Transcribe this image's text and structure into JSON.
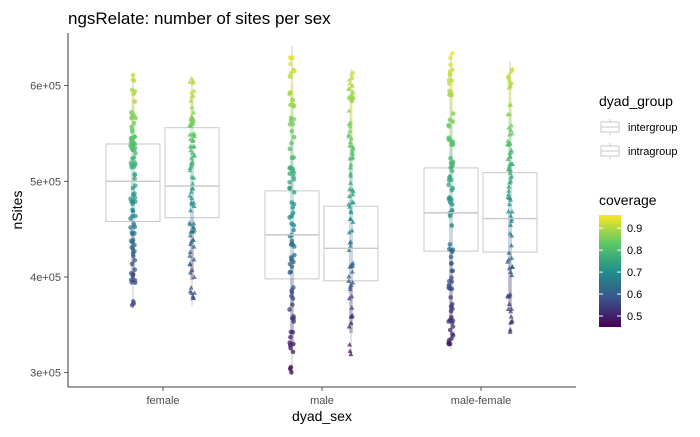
{
  "chart_data": {
    "type": "box",
    "title": "ngsRelate: number of sites per sex",
    "xlabel": "dyad_sex",
    "ylabel": "nSites",
    "categories": [
      "female",
      "male",
      "male-female"
    ],
    "ylim": [
      285000,
      655000
    ],
    "yticks": [
      {
        "value": 300000,
        "label": "3e+05"
      },
      {
        "value": 400000,
        "label": "4e+05"
      },
      {
        "value": 500000,
        "label": "5e+05"
      },
      {
        "value": 600000,
        "label": "6e+05"
      }
    ],
    "grid": false,
    "legend_position": "right",
    "group_legend": {
      "title": "dyad_group",
      "entries": [
        "intergroup",
        "intragroup"
      ],
      "markers": [
        "circle",
        "triangle"
      ]
    },
    "color_legend": {
      "title": "coverage",
      "range": [
        0.45,
        0.96
      ],
      "ticks": [
        {
          "value": 0.5,
          "label": "0.5"
        },
        {
          "value": 0.6,
          "label": "0.6"
        },
        {
          "value": 0.7,
          "label": "0.7"
        },
        {
          "value": 0.8,
          "label": "0.8"
        },
        {
          "value": 0.9,
          "label": "0.9"
        }
      ],
      "colors": [
        "#440154",
        "#3b528b",
        "#21908c",
        "#5dc863",
        "#fde725"
      ]
    },
    "boxes": [
      {
        "category": "female",
        "group": "intergroup",
        "q1": 458000,
        "median": 500000,
        "q3": 539000,
        "min": 367000,
        "max": 612000
      },
      {
        "category": "female",
        "group": "intragroup",
        "q1": 462000,
        "median": 495000,
        "q3": 556000,
        "min": 369000,
        "max": 609000
      },
      {
        "category": "male",
        "group": "intergroup",
        "q1": 398000,
        "median": 444000,
        "q3": 490000,
        "min": 297000,
        "max": 641000
      },
      {
        "category": "male",
        "group": "intragroup",
        "q1": 396000,
        "median": 430000,
        "q3": 474000,
        "min": 318000,
        "max": 617000
      },
      {
        "category": "male-female",
        "group": "intergroup",
        "q1": 427000,
        "median": 467000,
        "q3": 514000,
        "min": 324000,
        "max": 635000
      },
      {
        "category": "male-female",
        "group": "intragroup",
        "q1": 426000,
        "median": 461000,
        "q3": 509000,
        "min": 341000,
        "max": 625000
      }
    ]
  }
}
